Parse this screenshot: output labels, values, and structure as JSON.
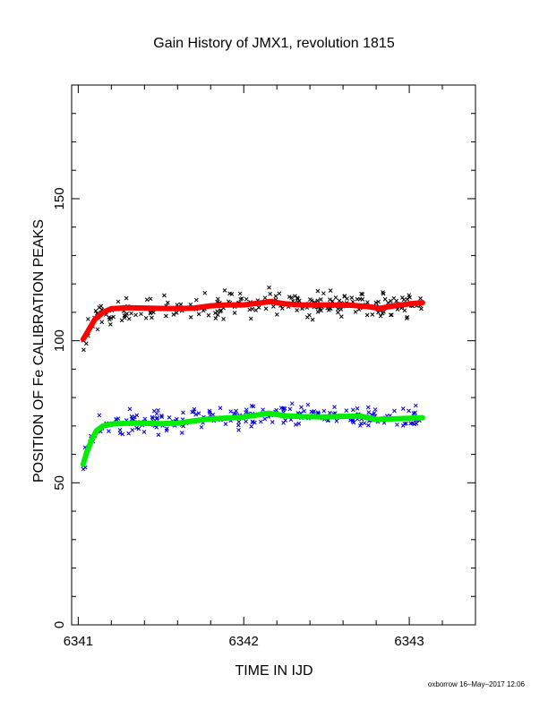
{
  "chart_data": {
    "type": "scatter",
    "title": "Gain History of JMX1, revolution 1815",
    "xlabel": "TIME IN IJD",
    "ylabel": "POSITION OF Fe CALIBRATION PEAKS",
    "footer": "oxborrow 16–May–2017 12:06",
    "xlim": [
      6340.96,
      6343.4
    ],
    "ylim": [
      0,
      190
    ],
    "xticks": [
      {
        "value": 6341,
        "label": "6341"
      },
      {
        "value": 6342,
        "label": "6342"
      },
      {
        "value": 6343,
        "label": "6343"
      }
    ],
    "yticks": [
      {
        "value": 0,
        "label": "0"
      },
      {
        "value": 50,
        "label": "50"
      },
      {
        "value": 100,
        "label": "100"
      },
      {
        "value": 150,
        "label": "150"
      }
    ],
    "grid": false,
    "series": [
      {
        "kind": "line",
        "color": "#ff0000",
        "x": [
          6341.03,
          6341.06,
          6341.1,
          6341.15,
          6341.2,
          6341.3,
          6341.4,
          6341.5,
          6341.6,
          6341.7,
          6341.8,
          6341.9,
          6342.0,
          6342.1,
          6342.16,
          6342.25,
          6342.35,
          6342.5,
          6342.65,
          6342.75,
          6342.82,
          6342.9,
          6343.0,
          6343.08
        ],
        "y": [
          100.5,
          103.5,
          107.5,
          110.0,
          111.3,
          111.6,
          111.5,
          111.4,
          111.3,
          111.5,
          112.3,
          112.6,
          112.6,
          113.3,
          113.8,
          113.0,
          112.6,
          112.6,
          112.5,
          112.0,
          111.4,
          112.2,
          113.0,
          113.4
        ]
      },
      {
        "kind": "line",
        "color": "#00ee00",
        "x": [
          6341.03,
          6341.05,
          6341.08,
          6341.11,
          6341.15,
          6341.2,
          6341.3,
          6341.4,
          6341.5,
          6341.6,
          6341.7,
          6341.8,
          6341.9,
          6342.0,
          6342.1,
          6342.15,
          6342.25,
          6342.35,
          6342.5,
          6342.6,
          6342.7,
          6342.8,
          6342.9,
          6343.0,
          6343.08
        ],
        "y": [
          56.5,
          60.5,
          65.0,
          68.3,
          70.0,
          70.7,
          71.0,
          71.0,
          70.8,
          71.0,
          71.8,
          72.5,
          72.8,
          73.2,
          74.0,
          74.5,
          73.6,
          73.3,
          73.2,
          73.4,
          73.5,
          72.3,
          72.5,
          72.7,
          72.9
        ]
      }
    ],
    "scatter_groups": [
      {
        "color": "#000000",
        "marker": "x",
        "jitter": 2.6
      },
      {
        "color": "#0000dd",
        "marker": "x",
        "jitter": 2.4
      }
    ]
  }
}
